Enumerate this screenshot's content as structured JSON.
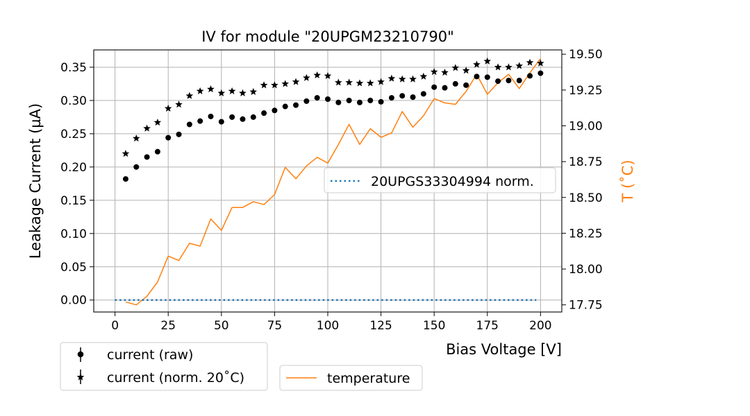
{
  "chart_data": {
    "type": "scatter",
    "title": "IV for module \"20UPGM23210790\"",
    "xlabel": "Bias Voltage [V]",
    "ylabel": "Leakage Current (µA)",
    "y2label": "T (˚C)",
    "xlim": [
      -10,
      210
    ],
    "ylim": [
      -0.018,
      0.376
    ],
    "y2lim": [
      17.7,
      19.53
    ],
    "xticks": [
      "0",
      "25",
      "50",
      "75",
      "100",
      "125",
      "150",
      "175",
      "200"
    ],
    "yticks": [
      "0.00",
      "0.05",
      "0.10",
      "0.15",
      "0.20",
      "0.25",
      "0.30",
      "0.35"
    ],
    "y2ticks": [
      "17.75",
      "18.00",
      "18.25",
      "18.50",
      "18.75",
      "19.00",
      "19.25",
      "19.50"
    ],
    "grid": true,
    "x": [
      5,
      10,
      15,
      20,
      25,
      30,
      35,
      40,
      45,
      50,
      55,
      60,
      65,
      70,
      75,
      80,
      85,
      90,
      95,
      100,
      105,
      110,
      115,
      120,
      125,
      130,
      135,
      140,
      145,
      150,
      155,
      160,
      165,
      170,
      175,
      180,
      185,
      190,
      195,
      200
    ],
    "series": [
      {
        "name": "current (raw)",
        "axis": "left",
        "marker": "circle",
        "color": "#000000",
        "values": [
          0.182,
          0.2,
          0.215,
          0.223,
          0.244,
          0.249,
          0.264,
          0.269,
          0.276,
          0.268,
          0.275,
          0.272,
          0.275,
          0.281,
          0.285,
          0.291,
          0.293,
          0.299,
          0.304,
          0.302,
          0.297,
          0.3,
          0.297,
          0.3,
          0.298,
          0.304,
          0.307,
          0.305,
          0.31,
          0.32,
          0.319,
          0.325,
          0.323,
          0.336,
          0.335,
          0.329,
          0.33,
          0.33,
          0.337,
          0.341
        ]
      },
      {
        "name": "current (norm. 20˚C)",
        "axis": "left",
        "marker": "star",
        "color": "#000000",
        "values": [
          0.22,
          0.243,
          0.258,
          0.267,
          0.288,
          0.294,
          0.307,
          0.314,
          0.317,
          0.311,
          0.314,
          0.311,
          0.313,
          0.323,
          0.323,
          0.325,
          0.328,
          0.334,
          0.338,
          0.337,
          0.327,
          0.327,
          0.326,
          0.326,
          0.328,
          0.333,
          0.332,
          0.332,
          0.336,
          0.343,
          0.342,
          0.349,
          0.345,
          0.354,
          0.359,
          0.35,
          0.35,
          0.352,
          0.357,
          0.356
        ]
      },
      {
        "name": "20UPGS33304994 norm.",
        "axis": "left",
        "marker": "dotted-line",
        "color": "#1f77b4",
        "x": [
          0,
          198
        ],
        "values": [
          0,
          0
        ]
      },
      {
        "name": "temperature",
        "axis": "right",
        "marker": "line",
        "color": "#ff7f0e",
        "x": [
          5,
          10,
          15,
          20,
          25,
          30,
          35,
          40,
          45,
          50,
          55,
          60,
          65,
          70,
          75,
          80,
          85,
          90,
          95,
          100,
          105,
          110,
          115,
          120,
          125,
          130,
          135,
          140,
          145,
          150,
          155,
          160,
          165,
          170,
          175,
          180,
          185,
          190,
          195,
          200
        ],
        "values": [
          17.77,
          17.75,
          17.81,
          17.91,
          18.09,
          18.06,
          18.18,
          18.16,
          18.35,
          18.27,
          18.43,
          18.43,
          18.47,
          18.45,
          18.52,
          18.71,
          18.63,
          18.72,
          18.78,
          18.74,
          18.87,
          19.01,
          18.87,
          18.98,
          18.92,
          18.95,
          19.1,
          18.99,
          19.07,
          19.19,
          19.16,
          19.15,
          19.24,
          19.36,
          19.22,
          19.3,
          19.36,
          19.26,
          19.37,
          19.47
        ]
      }
    ],
    "legends": [
      {
        "name": "legend-raw-norm",
        "placement": "bottom-left outside",
        "entries": [
          "current (raw)",
          "current (norm. 20˚C)"
        ]
      },
      {
        "name": "legend-temperature",
        "placement": "bottom-center outside",
        "entries": [
          "temperature"
        ]
      },
      {
        "name": "legend-reference",
        "placement": "center-right",
        "entries": [
          "20UPGS33304994 norm."
        ]
      }
    ]
  }
}
